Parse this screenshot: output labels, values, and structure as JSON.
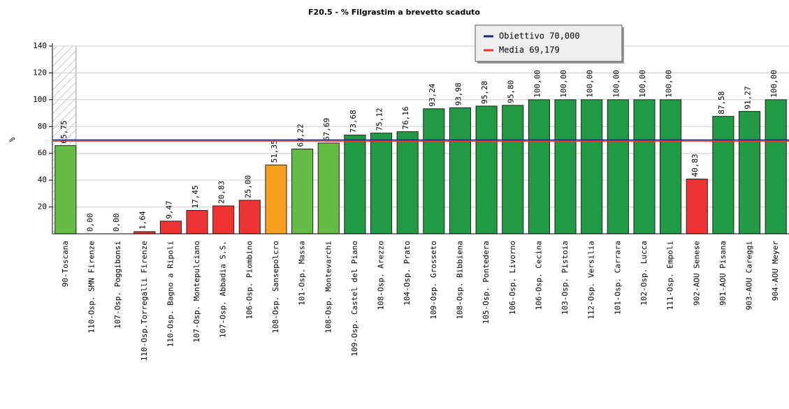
{
  "chart_data": {
    "type": "bar",
    "title": "F20.5 - % Filgrastim a brevetto scaduto",
    "y_label": "%",
    "categories": [
      "90-Toscana",
      "110-Osp. SMN Firenze",
      "107-Osp. Poggibonsi",
      "110-Osp.Torregalli Firenze",
      "110-Osp. Bagno a Ripoli",
      "107-Osp. Montepulciano",
      "107-Osp. Abbadia S.S.",
      "106-Osp. Piombino",
      "108-Osp. Sansepolcro",
      "101-Osp. Massa",
      "108-Osp. Montevarchi",
      "109-Osp. Castel del Piano",
      "108-Osp. Arezzo",
      "104-Osp. Prato",
      "109-Osp. Grosseto",
      "108-Osp. Bibbiena",
      "105-Osp. Pontedera",
      "106-Osp. Livorno",
      "106-Osp. Cecina",
      "103-Osp. Pistoia",
      "112-Osp. Versilia",
      "101-Osp. Carrara",
      "102-Osp. Lucca",
      "111-Osp. Empoli",
      "902-AOU Senese",
      "901-AOU Pisana",
      "903-AOU Careggi",
      "904-AOU Meyer"
    ],
    "values": [
      65.75,
      0,
      0,
      1.64,
      9.47,
      17.45,
      20.83,
      25,
      51.35,
      63.22,
      67.69,
      73.68,
      75.12,
      76.16,
      93.24,
      93.98,
      95.28,
      95.8,
      100,
      100,
      100,
      100,
      100,
      100,
      40.83,
      87.58,
      91.27,
      100
    ],
    "value_labels": [
      "65,75",
      "0,00",
      "0,00",
      "1,64",
      "9,47",
      "17,45",
      "20,83",
      "25,00",
      "51,35",
      "63,22",
      "67,69",
      "73,68",
      "75,12",
      "76,16",
      "93,24",
      "93,98",
      "95,28",
      "95,80",
      "100,00",
      "100,00",
      "100,00",
      "100,00",
      "100,00",
      "100,00",
      "40,83",
      "87,58",
      "91,27",
      "100,00"
    ],
    "colors": [
      "#66bb44",
      "#ee3333",
      "#ee3333",
      "#ee3333",
      "#ee3333",
      "#ee3333",
      "#ee3333",
      "#ee3333",
      "#f5a020",
      "#66bb44",
      "#66bb44",
      "#229944",
      "#229944",
      "#229944",
      "#229944",
      "#229944",
      "#229944",
      "#229944",
      "#229944",
      "#229944",
      "#229944",
      "#229944",
      "#229944",
      "#229944",
      "#ee3333",
      "#229944",
      "#229944",
      "#229944"
    ],
    "reference_lines": [
      {
        "name": "Obiettivo 70,000",
        "value": 70,
        "color": "#1a2a6c"
      },
      {
        "name": "Media 69,179",
        "value": 69.179,
        "color": "#ee3333"
      }
    ],
    "ylim": [
      0,
      140
    ],
    "yticks": [
      20,
      40,
      60,
      80,
      100,
      120,
      140
    ],
    "grid": true
  }
}
